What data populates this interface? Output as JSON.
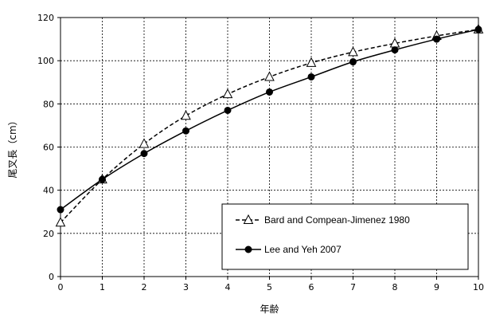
{
  "chart_data": {
    "type": "line",
    "xlabel": "年齢",
    "ylabel": "尾叉長（cm）",
    "xlim": [
      0,
      10
    ],
    "ylim": [
      0,
      120
    ],
    "xticks": [
      "0",
      "1",
      "2",
      "3",
      "4",
      "5",
      "6",
      "7",
      "8",
      "9",
      "10"
    ],
    "yticks": [
      "0",
      "20",
      "40",
      "60",
      "80",
      "100",
      "120"
    ],
    "grid": true,
    "legend_position": "bottom-right",
    "x": [
      0,
      1,
      2,
      3,
      4,
      5,
      6,
      7,
      8,
      9,
      10
    ],
    "series": [
      {
        "name": "Bard and Compean-Jimenez 1980",
        "marker": "open-triangle",
        "line_style": "dashed",
        "color": "#000000",
        "values": [
          25,
          45,
          61.5,
          74.5,
          84.5,
          92.5,
          99,
          104,
          108,
          111.5,
          114.5
        ]
      },
      {
        "name": "Lee and Yeh 2007",
        "marker": "filled-circle",
        "line_style": "solid",
        "color": "#000000",
        "values": [
          31,
          45,
          57,
          67.5,
          77,
          85.5,
          92.5,
          99.5,
          105,
          110,
          114.5
        ]
      }
    ]
  }
}
